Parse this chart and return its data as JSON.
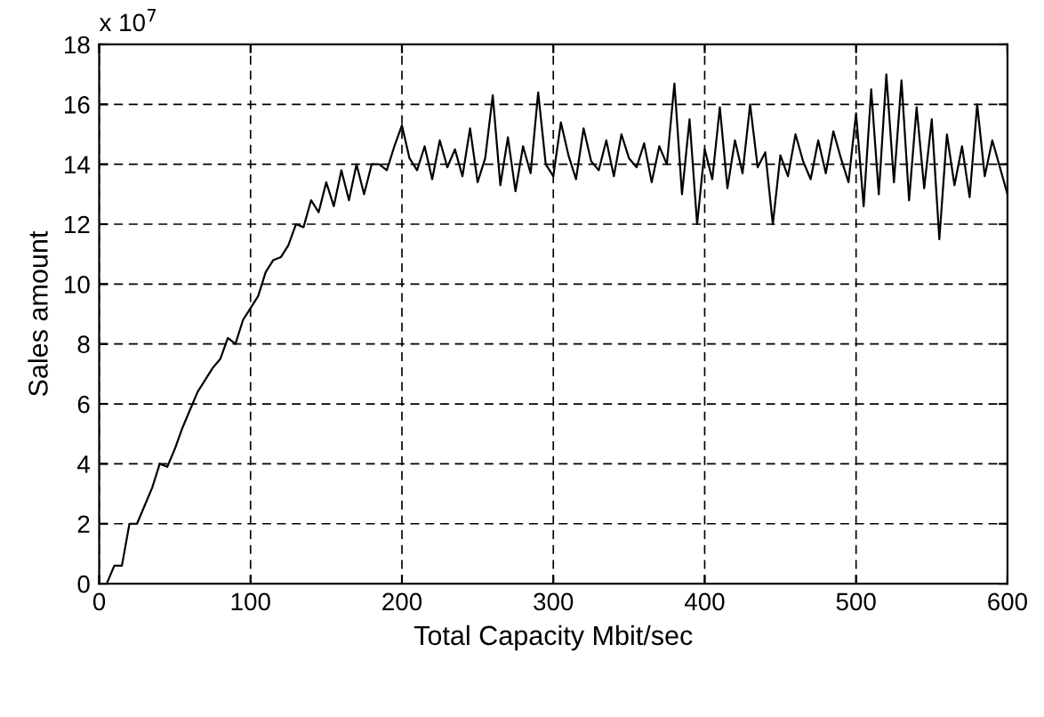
{
  "chart_data": {
    "type": "line",
    "xlabel": "Total Capacity Mbit/sec",
    "ylabel": "Sales amount",
    "annotations": [
      "x 10$^{7}$"
    ],
    "xlim": [
      0,
      600
    ],
    "xticks": [
      0,
      100,
      200,
      300,
      400,
      500,
      600
    ],
    "ylim": [
      0,
      18
    ],
    "yticks": [
      0,
      2,
      4,
      6,
      8,
      10,
      12,
      14,
      16,
      18
    ],
    "grid": true,
    "line_style": "solid",
    "marker": "none",
    "series": [
      {
        "color": "#000000",
        "x": [
          5,
          10,
          15,
          20,
          25,
          30,
          35,
          40,
          45,
          50,
          55,
          60,
          65,
          70,
          75,
          80,
          85,
          90,
          95,
          100,
          105,
          110,
          115,
          120,
          125,
          130,
          135,
          140,
          145,
          150,
          155,
          160,
          165,
          170,
          175,
          180,
          185,
          190,
          195,
          200,
          205,
          210,
          215,
          220,
          225,
          230,
          235,
          240,
          245,
          250,
          255,
          260,
          265,
          270,
          275,
          280,
          285,
          290,
          295,
          300,
          305,
          310,
          315,
          320,
          325,
          330,
          335,
          340,
          345,
          350,
          355,
          360,
          365,
          370,
          375,
          380,
          385,
          390,
          395,
          400,
          405,
          410,
          415,
          420,
          425,
          430,
          435,
          440,
          445,
          450,
          455,
          460,
          465,
          470,
          475,
          480,
          485,
          490,
          495,
          500,
          505,
          510,
          515,
          520,
          525,
          530,
          535,
          540,
          545,
          550,
          555,
          560,
          565,
          570,
          575,
          580,
          585,
          590,
          595,
          600
        ],
        "values": [
          0,
          0.6,
          0.6,
          2,
          2,
          2.6,
          3.2,
          4,
          3.9,
          4.5,
          5.2,
          5.8,
          6.4,
          6.8,
          7.2,
          7.5,
          8.2,
          8,
          8.8,
          9.2,
          9.6,
          10.4,
          10.8,
          10.9,
          11.3,
          12,
          11.9,
          12.8,
          12.4,
          13.4,
          12.6,
          13.8,
          12.8,
          14,
          13,
          14,
          14,
          13.8,
          14.6,
          15.3,
          14.2,
          13.8,
          14.6,
          13.5,
          14.8,
          13.9,
          14.5,
          13.6,
          15.2,
          13.4,
          14.2,
          16.3,
          13.3,
          14.9,
          13.1,
          14.6,
          13.7,
          16.4,
          14.0,
          13.6,
          15.4,
          14.3,
          13.5,
          15.2,
          14.1,
          13.8,
          14.8,
          13.6,
          15.0,
          14.2,
          13.9,
          14.7,
          13.4,
          14.6,
          14.0,
          16.7,
          13.0,
          15.5,
          12.0,
          14.5,
          13.5,
          15.9,
          13.2,
          14.8,
          13.7,
          16.0,
          13.9,
          14.4,
          12.0,
          14.3,
          13.6,
          15.0,
          14.1,
          13.5,
          14.8,
          13.7,
          15.1,
          14.2,
          13.4,
          15.7,
          12.6,
          16.5,
          13.0,
          17.0,
          13.4,
          16.8,
          12.8,
          15.9,
          13.2,
          15.5,
          11.5,
          15.0,
          13.3,
          14.6,
          12.9,
          16.0,
          13.6,
          14.8,
          13.9,
          13.0
        ]
      }
    ]
  }
}
